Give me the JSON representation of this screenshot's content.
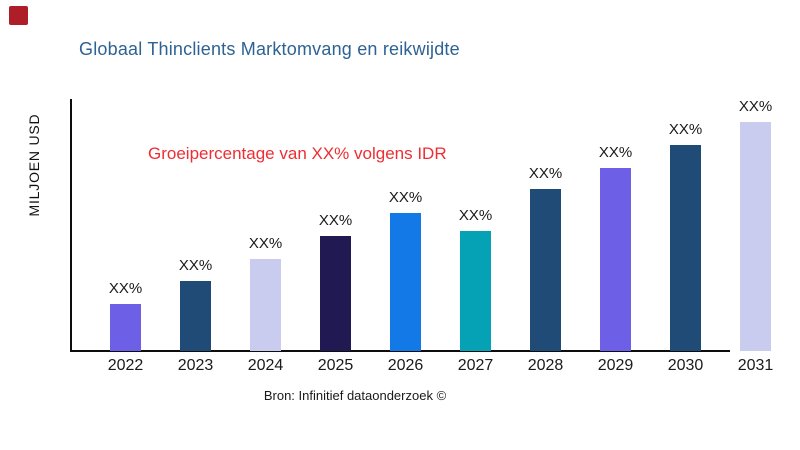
{
  "page": {
    "background": "#ffffff"
  },
  "logo": {
    "color": "#ad1e29"
  },
  "header": {
    "title": "Globaal Thinclients Marktomvang en reikwijdte",
    "title_color": "#2d6293"
  },
  "annotation": {
    "text": "Groeipercentage van XX% volgens IDR",
    "color": "#ee2e33"
  },
  "axes": {
    "y_label": "MILJOEN USD",
    "axis_color": "#0d0d0d"
  },
  "caption": {
    "text": "Bron: Infinitief dataonderzoek ©"
  },
  "chart_data": {
    "type": "bar",
    "title": "Globaal Thinclients Marktomvang en reikwijdte",
    "xlabel": "",
    "ylabel": "MILJOEN USD",
    "categories": [
      "2022",
      "2023",
      "2024",
      "2025",
      "2026",
      "2027",
      "2028",
      "2029",
      "2030",
      "2031"
    ],
    "values": [
      47,
      70,
      92,
      115,
      138,
      120,
      162,
      183,
      206,
      229
    ],
    "value_labels": [
      "XX%",
      "XX%",
      "XX%",
      "XX%",
      "XX%",
      "XX%",
      "XX%",
      "XX%",
      "XX%",
      "XX%"
    ],
    "bar_colors": [
      "#6e5fe7",
      "#1f4b76",
      "#c9ccef",
      "#211a52",
      "#1379e6",
      "#04a2b4",
      "#1f4b76",
      "#6e5fe7",
      "#1f4b76",
      "#c9ccef"
    ],
    "annotation": "Groeipercentage van XX% volgens IDR",
    "source": "Bron: Infinitief dataonderzoek ©",
    "layout": {
      "grid": false,
      "y_tick_labels_visible": false,
      "legend": "none",
      "values_unit": "relative-bar-height-px"
    }
  }
}
